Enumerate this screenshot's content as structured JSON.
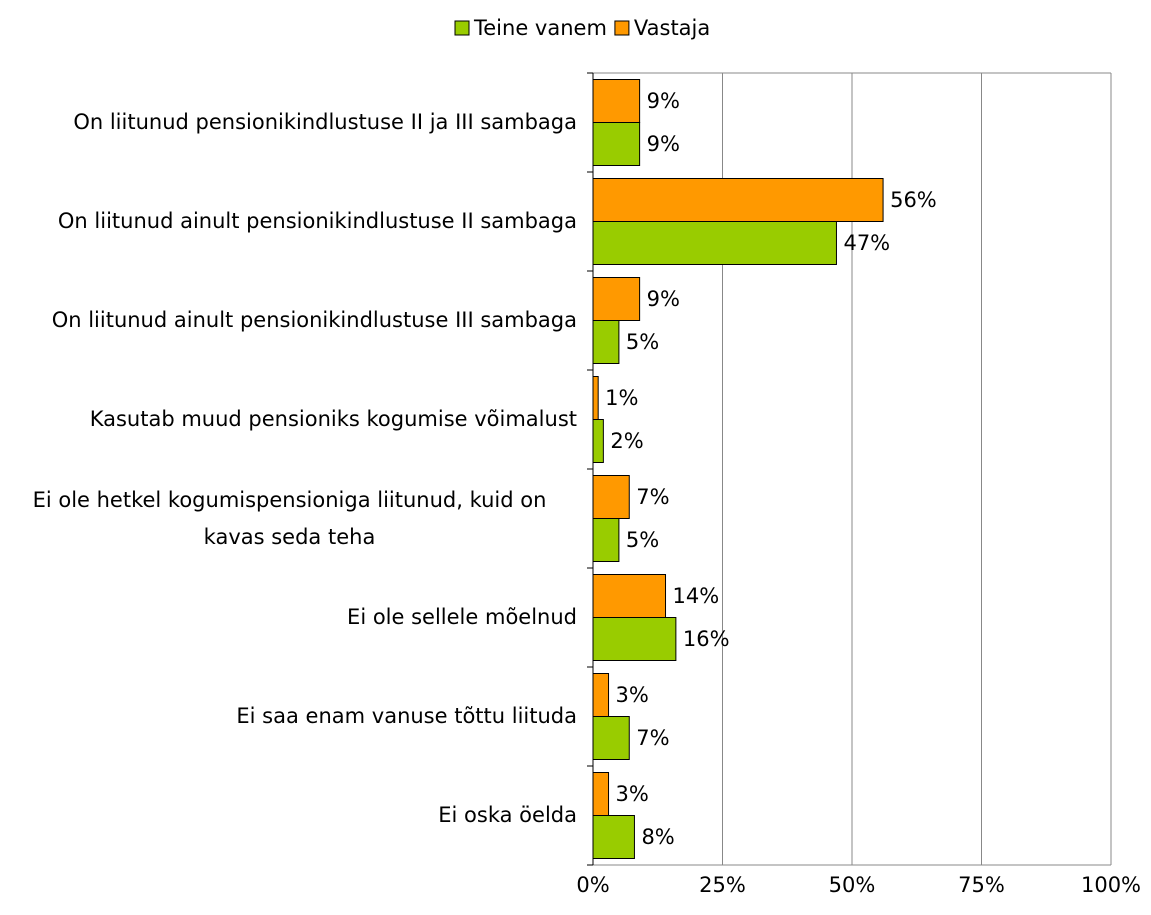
{
  "chart_data": {
    "type": "bar",
    "orientation": "horizontal",
    "categories": [
      "On liitunud pensionikindlustuse II ja III sambaga",
      "On liitunud ainult pensionikindlustuse II sambaga",
      "On liitunud ainult pensionikindlustuse III sambaga",
      "Kasutab muud pensioniks kogumise võimalust",
      "Ei ole hetkel kogumispensioniga liitunud, kuid on kavas seda teha",
      "Ei ole sellele mõelnud",
      "Ei saa enam vanuse tõttu liituda",
      "Ei oska öelda"
    ],
    "series": [
      {
        "name": "Teine vanem",
        "color": "#99cc00",
        "values": [
          9,
          47,
          5,
          2,
          5,
          16,
          7,
          8
        ],
        "value_labels": [
          "9%",
          "47%",
          "5%",
          "2%",
          "5%",
          "16%",
          "7%",
          "8%"
        ]
      },
      {
        "name": "Vastaja",
        "color": "#ff9900",
        "values": [
          9,
          56,
          9,
          1,
          7,
          14,
          3,
          3
        ],
        "value_labels": [
          "9%",
          "56%",
          "9%",
          "1%",
          "7%",
          "14%",
          "3%",
          "3%"
        ]
      }
    ],
    "xlim": [
      0,
      100
    ],
    "xticks": [
      {
        "value": 0,
        "label": "0%"
      },
      {
        "value": 25,
        "label": "25%"
      },
      {
        "value": 50,
        "label": "50%"
      },
      {
        "value": 75,
        "label": "75%"
      },
      {
        "value": 100,
        "label": "100%"
      }
    ],
    "grid": true,
    "legend": "top"
  }
}
